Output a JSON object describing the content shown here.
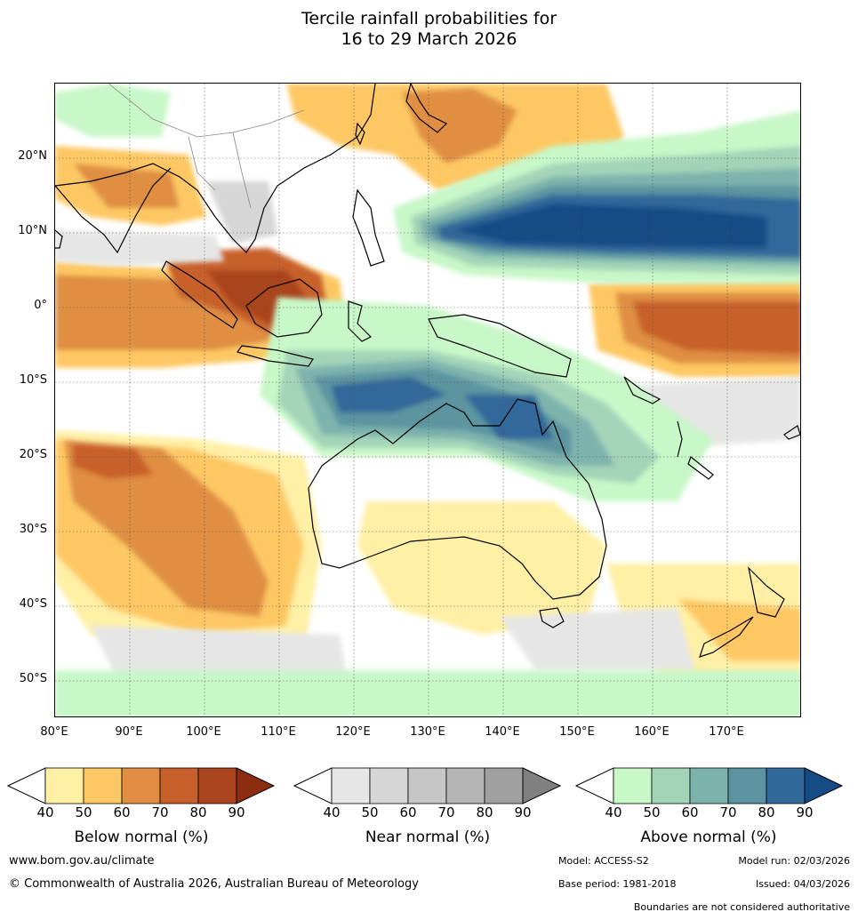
{
  "title": {
    "line1": "Tercile rainfall probabilities for",
    "line2": "16 to 29 March 2026"
  },
  "map": {
    "lat_labels": [
      "20°N",
      "10°N",
      "0°",
      "10°S",
      "20°S",
      "30°S",
      "40°S",
      "50°S"
    ],
    "lat_values": [
      20,
      10,
      0,
      -10,
      -20,
      -30,
      -40,
      -50
    ],
    "lon_labels": [
      "80°E",
      "90°E",
      "100°E",
      "110°E",
      "120°E",
      "130°E",
      "140°E",
      "150°E",
      "160°E",
      "170°E"
    ],
    "lon_values": [
      80,
      90,
      100,
      110,
      120,
      130,
      140,
      150,
      160,
      170
    ],
    "extent": {
      "lon_min": 80,
      "lon_max": 180,
      "lat_min": -55,
      "lat_max": 30
    }
  },
  "colorbars": [
    {
      "title": "Below normal (%)",
      "ticks": [
        "40",
        "50",
        "60",
        "70",
        "80",
        "90"
      ],
      "colors": [
        "#fff0a6",
        "#fdc864",
        "#df8e43",
        "#c8602c",
        "#a9441e",
        "#8c2d12"
      ]
    },
    {
      "title": "Near normal (%)",
      "ticks": [
        "40",
        "50",
        "60",
        "70",
        "80",
        "90"
      ],
      "colors": [
        "#e6e6e6",
        "#d6d6d6",
        "#c6c6c6",
        "#b5b5b5",
        "#a0a0a0",
        "#808080"
      ]
    },
    {
      "title": "Above normal (%)",
      "ticks": [
        "40",
        "50",
        "60",
        "70",
        "80",
        "90"
      ],
      "colors": [
        "#c8f7c8",
        "#a3d4b8",
        "#7db3ad",
        "#5b94a0",
        "#30689a",
        "#164c85"
      ]
    }
  ],
  "footer": {
    "website": "www.bom.gov.au/climate",
    "copyright": "© Commonwealth of Australia 2026, Australian Bureau of Meteorology",
    "model": "Model: ACCESS-S2",
    "model_run": "Model run: 02/03/2026",
    "base_period": "Base period: 1981-2018",
    "issued": "Issued: 04/03/2026",
    "disclaimer": "Boundaries are not considered authoritative"
  }
}
